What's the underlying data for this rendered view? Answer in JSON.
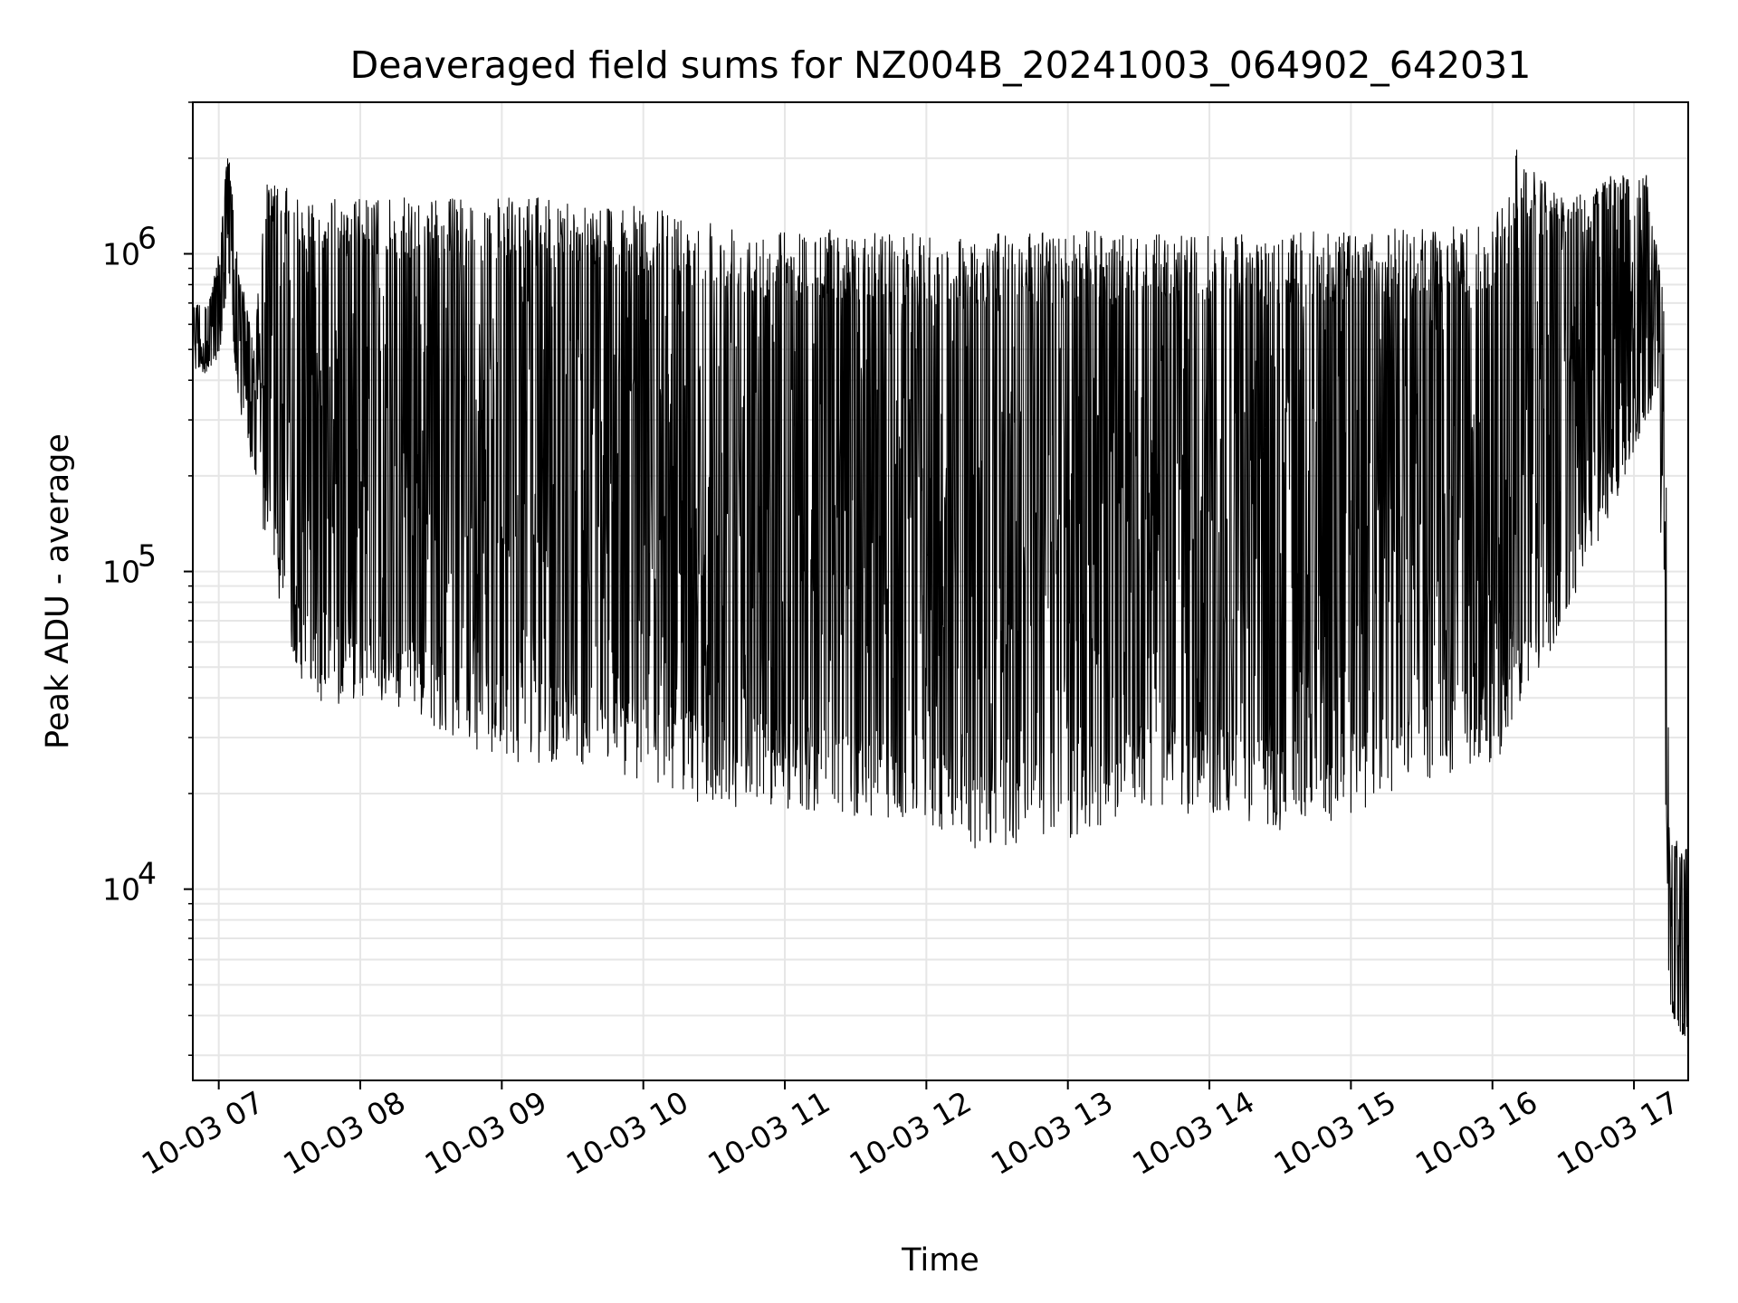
{
  "chart_data": {
    "type": "line",
    "title": "Deaveraged field sums for NZ004B_20241003_064902_642031",
    "xlabel": "Time",
    "ylabel": "Peak ADU - average",
    "yscale": "log",
    "ylim": [
      2500,
      3000000
    ],
    "xlim": [
      "2024-10-03 06:49",
      "2024-10-03 17:23"
    ],
    "grid": true,
    "legend": "none",
    "line_color": "#000000",
    "x_ticks": [
      {
        "t": "2024-10-03 07:00",
        "label": "10-03 07"
      },
      {
        "t": "2024-10-03 08:00",
        "label": "10-03 08"
      },
      {
        "t": "2024-10-03 09:00",
        "label": "10-03 09"
      },
      {
        "t": "2024-10-03 10:00",
        "label": "10-03 10"
      },
      {
        "t": "2024-10-03 11:00",
        "label": "10-03 11"
      },
      {
        "t": "2024-10-03 12:00",
        "label": "10-03 12"
      },
      {
        "t": "2024-10-03 13:00",
        "label": "10-03 13"
      },
      {
        "t": "2024-10-03 14:00",
        "label": "10-03 14"
      },
      {
        "t": "2024-10-03 15:00",
        "label": "10-03 15"
      },
      {
        "t": "2024-10-03 16:00",
        "label": "10-03 16"
      },
      {
        "t": "2024-10-03 17:00",
        "label": "10-03 17"
      }
    ],
    "y_ticks": [
      {
        "value": 10000,
        "base": "10",
        "exp": "4"
      },
      {
        "value": 100000,
        "base": "10",
        "exp": "5"
      },
      {
        "value": 1000000,
        "base": "10",
        "exp": "6"
      }
    ],
    "envelope": [
      {
        "t": "2024-10-03 06:49",
        "low": 430000,
        "high": 720000
      },
      {
        "t": "2024-10-03 06:55",
        "low": 420000,
        "high": 680000
      },
      {
        "t": "2024-10-03 07:00",
        "low": 450000,
        "high": 1000000
      },
      {
        "t": "2024-10-03 07:04",
        "low": 800000,
        "high": 2200000
      },
      {
        "t": "2024-10-03 07:08",
        "low": 350000,
        "high": 1000000
      },
      {
        "t": "2024-10-03 07:15",
        "low": 200000,
        "high": 500000
      },
      {
        "t": "2024-10-03 07:20",
        "low": 120000,
        "high": 1700000
      },
      {
        "t": "2024-10-03 07:30",
        "low": 60000,
        "high": 1600000
      },
      {
        "t": "2024-10-03 07:40",
        "low": 35000,
        "high": 1500000
      },
      {
        "t": "2024-10-03 08:00",
        "low": 40000,
        "high": 1500000
      },
      {
        "t": "2024-10-03 08:30",
        "low": 33000,
        "high": 1500000
      },
      {
        "t": "2024-10-03 09:00",
        "low": 25000,
        "high": 1500000
      },
      {
        "t": "2024-10-03 09:30",
        "low": 25000,
        "high": 1500000
      },
      {
        "t": "2024-10-03 10:00",
        "low": 22000,
        "high": 1400000
      },
      {
        "t": "2024-10-03 10:30",
        "low": 18000,
        "high": 1300000
      },
      {
        "t": "2024-10-03 11:00",
        "low": 18000,
        "high": 1200000
      },
      {
        "t": "2024-10-03 11:30",
        "low": 17000,
        "high": 1200000
      },
      {
        "t": "2024-10-03 12:00",
        "low": 16000,
        "high": 1150000
      },
      {
        "t": "2024-10-03 12:25",
        "low": 13000,
        "high": 1150000
      },
      {
        "t": "2024-10-03 13:00",
        "low": 14000,
        "high": 1200000
      },
      {
        "t": "2024-10-03 13:30",
        "low": 18000,
        "high": 1150000
      },
      {
        "t": "2024-10-03 14:00",
        "low": 17000,
        "high": 1150000
      },
      {
        "t": "2024-10-03 14:30",
        "low": 15000,
        "high": 1150000
      },
      {
        "t": "2024-10-03 15:00",
        "low": 17000,
        "high": 1200000
      },
      {
        "t": "2024-10-03 15:30",
        "low": 22000,
        "high": 1200000
      },
      {
        "t": "2024-10-03 16:00",
        "low": 25000,
        "high": 1250000
      },
      {
        "t": "2024-10-03 16:10",
        "low": 30000,
        "high": 2200000
      },
      {
        "t": "2024-10-03 16:30",
        "low": 70000,
        "high": 1500000
      },
      {
        "t": "2024-10-03 16:50",
        "low": 150000,
        "high": 1800000
      },
      {
        "t": "2024-10-03 17:05",
        "low": 300000,
        "high": 1900000
      },
      {
        "t": "2024-10-03 17:10",
        "low": 350000,
        "high": 1000000
      },
      {
        "t": "2024-10-03 17:13",
        "low": 30000,
        "high": 700000
      },
      {
        "t": "2024-10-03 17:15",
        "low": 4000,
        "high": 14000
      },
      {
        "t": "2024-10-03 17:23",
        "low": 3200,
        "high": 14500
      }
    ]
  }
}
